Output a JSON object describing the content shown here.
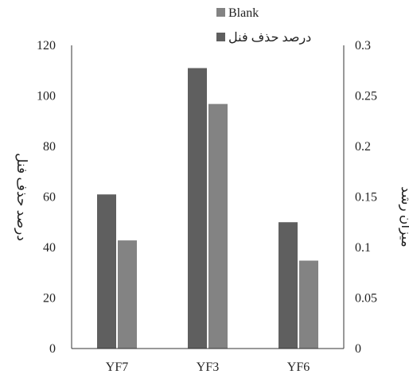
{
  "chart_data": {
    "type": "bar",
    "categories": [
      "YF7",
      "YF3",
      "YF6"
    ],
    "series": [
      {
        "name": "درصد حذف فنل",
        "axis": "left",
        "color": "#5f5f5f",
        "values": [
          61,
          111,
          50
        ]
      },
      {
        "name": "Blank",
        "axis": "right",
        "color": "#838383",
        "values": [
          0.107,
          0.242,
          0.087
        ]
      }
    ],
    "y_left": {
      "label": "درصد حذف فنل",
      "ylim": [
        0,
        120
      ],
      "ticks": [
        0,
        20,
        40,
        60,
        80,
        100,
        120
      ],
      "tick_labels": [
        "0",
        "20",
        "40",
        "60",
        "80",
        "100",
        "120"
      ]
    },
    "y_right": {
      "label": "میزان رشد",
      "ylim": [
        0,
        0.3
      ],
      "ticks": [
        0,
        0.05,
        0.1,
        0.15,
        0.2,
        0.25,
        0.3
      ],
      "tick_labels": [
        "0",
        "0.05",
        "0.1",
        "0.15",
        "0.2",
        "0.25",
        "0.3"
      ]
    },
    "legend": {
      "position": "top",
      "entries": [
        "Blank",
        "درصد حذف فنل"
      ]
    },
    "grid": false
  }
}
